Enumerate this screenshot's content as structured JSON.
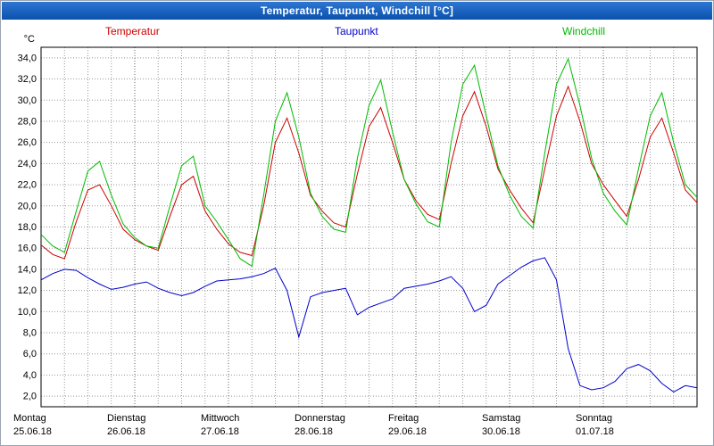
{
  "window": {
    "title": "Temperatur, Taupunkt, Windchill [°C]"
  },
  "chart_data": {
    "type": "line",
    "title": "Temperatur, Taupunkt, Windchill [°C]",
    "legend_position": "top",
    "grid": true,
    "y_axis": {
      "unit": "°C",
      "min": 2,
      "max": 34,
      "step": 2,
      "range": [
        1,
        35
      ],
      "tick_labels": [
        "34,0",
        "32,0",
        "30,0",
        "28,0",
        "26,0",
        "24,0",
        "22,0",
        "20,0",
        "18,0",
        "16,0",
        "14,0",
        "12,0",
        "10,0",
        "8,0",
        "6,0",
        "4,0",
        "2,0"
      ]
    },
    "x_axis": {
      "hours_total": 168,
      "sample_interval_hours": 3,
      "gridline_interval_hours": 6,
      "days": [
        {
          "day": "Montag",
          "date": "25.06.18"
        },
        {
          "day": "Dienstag",
          "date": "26.06.18"
        },
        {
          "day": "Mittwoch",
          "date": "27.06.18"
        },
        {
          "day": "Donnerstag",
          "date": "28.06.18"
        },
        {
          "day": "Freitag",
          "date": "29.06.18"
        },
        {
          "day": "Samstag",
          "date": "30.06.18"
        },
        {
          "day": "Sonntag",
          "date": "01.07.18"
        }
      ]
    },
    "series": [
      {
        "name": "Temperatur",
        "color": "#cc0000",
        "values": [
          16.3,
          15.4,
          15.0,
          18.5,
          21.5,
          22.0,
          20.0,
          17.8,
          16.8,
          16.2,
          15.8,
          19.0,
          22.0,
          22.8,
          19.5,
          17.8,
          16.4,
          15.6,
          15.3,
          20.0,
          26.0,
          28.3,
          25.0,
          21.0,
          19.5,
          18.4,
          18.0,
          23.0,
          27.5,
          29.3,
          26.0,
          22.5,
          20.5,
          19.2,
          18.7,
          24.0,
          28.5,
          30.8,
          27.5,
          23.5,
          21.5,
          19.8,
          18.4,
          23.5,
          28.5,
          31.3,
          28.0,
          24.0,
          22.0,
          20.5,
          19.0,
          22.5,
          26.5,
          28.3,
          25.0,
          21.5,
          20.3
        ]
      },
      {
        "name": "Taupunkt",
        "color": "#0000cc",
        "values": [
          13.0,
          13.6,
          14.0,
          13.9,
          13.2,
          12.6,
          12.1,
          12.3,
          12.6,
          12.8,
          12.2,
          11.8,
          11.5,
          11.8,
          12.4,
          12.9,
          13.0,
          13.1,
          13.3,
          13.6,
          14.1,
          12.0,
          7.6,
          11.4,
          11.8,
          12.0,
          12.2,
          9.7,
          10.4,
          10.8,
          11.2,
          12.2,
          12.4,
          12.6,
          12.9,
          13.3,
          12.2,
          10.0,
          10.6,
          12.6,
          13.4,
          14.2,
          14.8,
          15.1,
          13.0,
          6.5,
          3.0,
          2.6,
          2.8,
          3.4,
          4.6,
          5.0,
          4.4,
          3.2,
          2.4,
          3.0,
          2.8
        ]
      },
      {
        "name": "Windchill",
        "color": "#00bb00",
        "values": [
          17.3,
          16.2,
          15.6,
          19.5,
          23.3,
          24.2,
          21.0,
          18.3,
          17.0,
          16.2,
          16.0,
          20.0,
          23.8,
          24.7,
          20.0,
          18.5,
          16.8,
          15.0,
          14.3,
          21.0,
          28.0,
          30.7,
          26.5,
          21.2,
          19.0,
          17.8,
          17.5,
          24.5,
          29.5,
          31.9,
          27.0,
          22.5,
          20.2,
          18.5,
          18.0,
          26.0,
          31.5,
          33.3,
          28.5,
          23.8,
          21.0,
          19.0,
          17.9,
          25.0,
          31.5,
          33.9,
          29.5,
          24.5,
          21.2,
          19.5,
          18.2,
          23.5,
          28.5,
          30.7,
          26.0,
          22.0,
          20.8
        ]
      }
    ]
  }
}
